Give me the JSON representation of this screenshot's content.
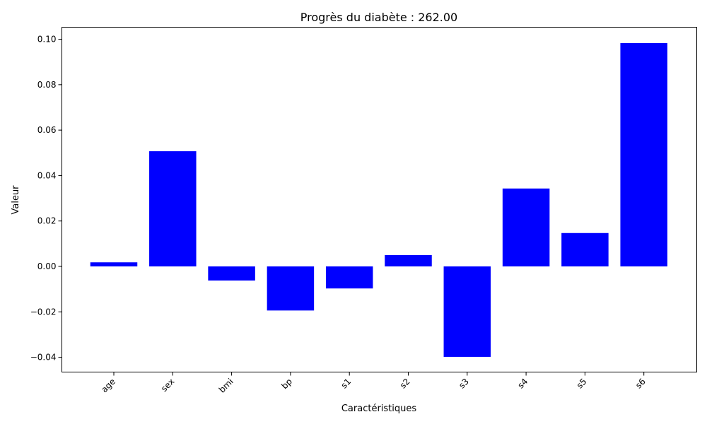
{
  "chart_data": {
    "type": "bar",
    "title": "Progrès du diabète : 262.00",
    "xlabel": "Caractéristiques",
    "ylabel": "Valeur",
    "categories": [
      "age",
      "sex",
      "bmi",
      "bp",
      "s1",
      "s2",
      "s3",
      "s4",
      "s5",
      "s6"
    ],
    "values": [
      0.0018,
      0.0507,
      -0.0062,
      -0.0194,
      -0.0097,
      0.005,
      -0.0398,
      0.0343,
      0.0147,
      0.0983
    ],
    "ylim": [
      -0.0465,
      0.1053
    ],
    "yticks": [
      -0.04,
      -0.02,
      0.0,
      0.02,
      0.04,
      0.06,
      0.08,
      0.1
    ],
    "ytick_labels": [
      "−0.04",
      "−0.02",
      "0.00",
      "0.02",
      "0.04",
      "0.06",
      "0.08",
      "0.10"
    ],
    "grid": false,
    "colors": {
      "bar": "#0000ff"
    }
  }
}
